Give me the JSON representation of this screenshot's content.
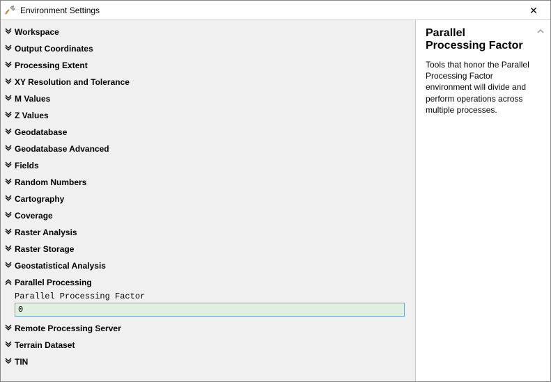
{
  "window": {
    "title": "Environment Settings"
  },
  "sections": [
    {
      "label": "Workspace",
      "expanded": false
    },
    {
      "label": "Output Coordinates",
      "expanded": false
    },
    {
      "label": "Processing Extent",
      "expanded": false
    },
    {
      "label": "XY Resolution and Tolerance",
      "expanded": false
    },
    {
      "label": "M Values",
      "expanded": false
    },
    {
      "label": "Z Values",
      "expanded": false
    },
    {
      "label": "Geodatabase",
      "expanded": false
    },
    {
      "label": "Geodatabase Advanced",
      "expanded": false
    },
    {
      "label": "Fields",
      "expanded": false
    },
    {
      "label": "Random Numbers",
      "expanded": false
    },
    {
      "label": "Cartography",
      "expanded": false
    },
    {
      "label": "Coverage",
      "expanded": false
    },
    {
      "label": "Raster Analysis",
      "expanded": false
    },
    {
      "label": "Raster Storage",
      "expanded": false
    },
    {
      "label": "Geostatistical Analysis",
      "expanded": false
    },
    {
      "label": "Parallel Processing",
      "expanded": true,
      "field": {
        "label": "Parallel Processing Factor",
        "value": "0"
      }
    },
    {
      "label": "Remote Processing Server",
      "expanded": false
    },
    {
      "label": "Terrain Dataset",
      "expanded": false
    },
    {
      "label": "TIN",
      "expanded": false
    }
  ],
  "helpPanel": {
    "title": "Parallel Processing Factor",
    "body": "Tools that honor the Parallel Processing Factor environment will divide and perform operations across multiple processes."
  },
  "chevrons": {
    "collapsed": "»",
    "expanded": "«"
  }
}
